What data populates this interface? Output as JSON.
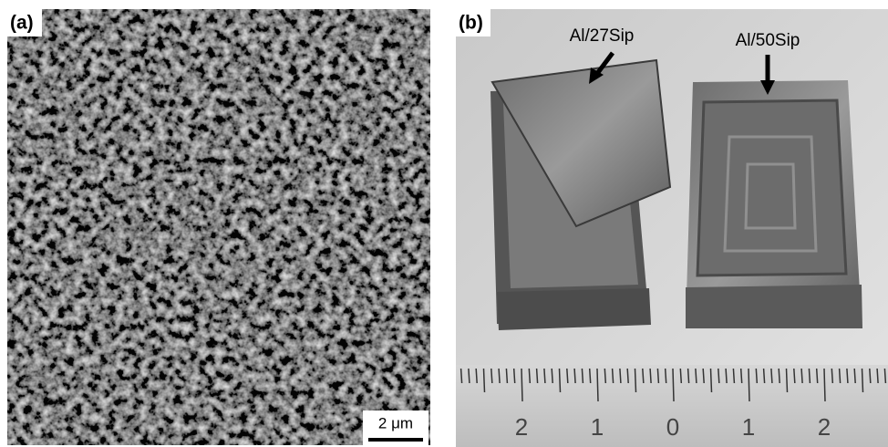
{
  "panels": [
    {
      "label": "(a)",
      "scale_bar": "2 μm"
    },
    {
      "label": "(b)",
      "annotations": [
        "Al/27Sip",
        "Al/50Sip"
      ],
      "ruler_labels": [
        "2",
        "1",
        "0",
        "1",
        "2"
      ]
    }
  ]
}
